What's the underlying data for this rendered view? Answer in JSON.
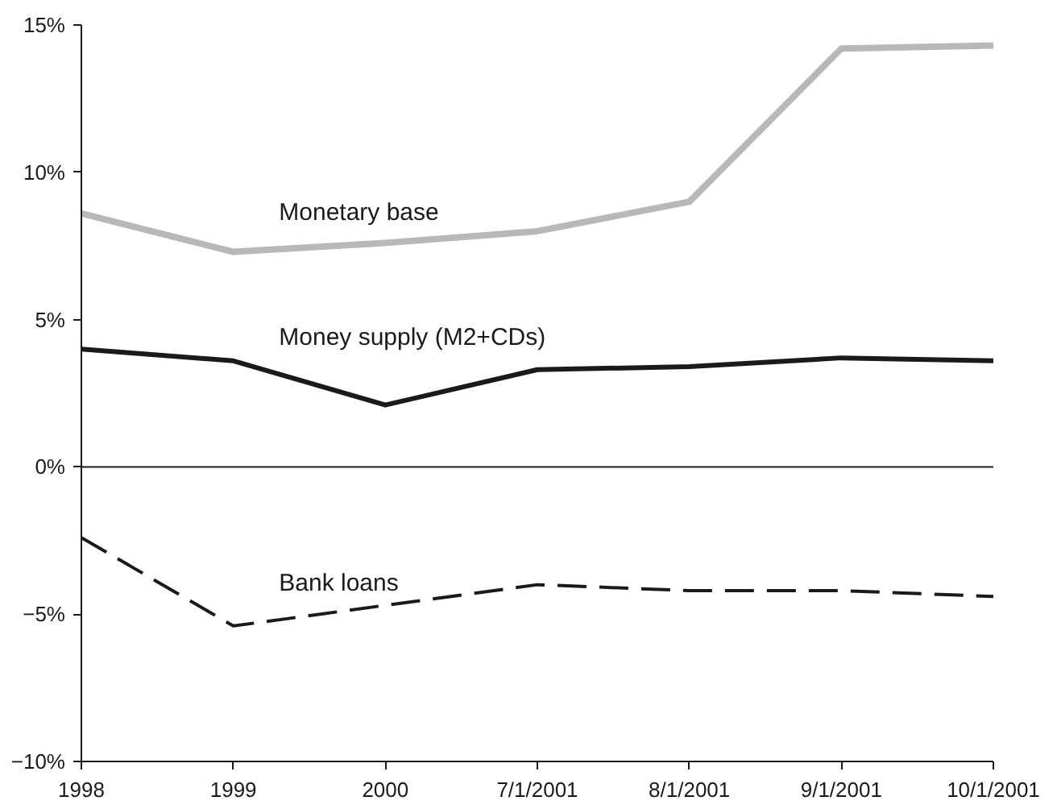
{
  "chart_data": {
    "type": "line",
    "categories": [
      "1998",
      "1999",
      "2000",
      "7/1/2001",
      "8/1/2001",
      "9/1/2001",
      "10/1/2001"
    ],
    "series": [
      {
        "name": "Monetary base",
        "color": "#b8b8b8",
        "line_style": "solid",
        "values": [
          8.6,
          7.3,
          7.6,
          8.0,
          9.0,
          14.2,
          14.3
        ]
      },
      {
        "name": "Money supply (M2+CDs)",
        "color": "#1a1a1a",
        "line_style": "solid",
        "values": [
          4.0,
          3.6,
          2.1,
          3.3,
          3.4,
          3.7,
          3.6
        ]
      },
      {
        "name": "Bank loans",
        "color": "#1a1a1a",
        "line_style": "dashed",
        "values": [
          -2.4,
          -5.4,
          -4.7,
          -4.0,
          -4.2,
          -4.2,
          -4.4
        ]
      }
    ],
    "ylim": [
      -10,
      15
    ],
    "yticks": [
      {
        "value": -10,
        "label": "−10%"
      },
      {
        "value": -5,
        "label": "−5%"
      },
      {
        "value": 0,
        "label": "0%"
      },
      {
        "value": 5,
        "label": "5%"
      },
      {
        "value": 10,
        "label": "10%"
      },
      {
        "value": 15,
        "label": "15%"
      }
    ],
    "ref_lines": [
      {
        "axis": "y",
        "value": 0,
        "color": "#1a1a1a"
      }
    ],
    "grid": false,
    "marker": "none"
  }
}
